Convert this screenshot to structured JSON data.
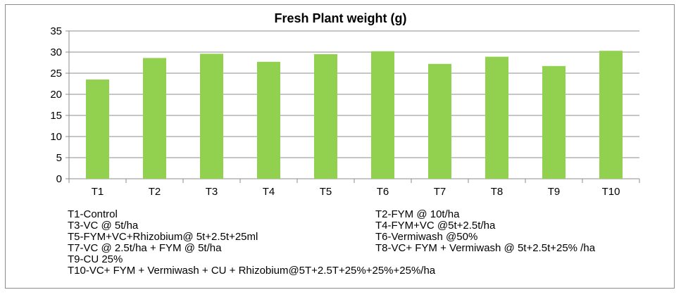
{
  "chart_data": {
    "type": "bar",
    "title": "Fresh Plant weight (g)",
    "categories": [
      "T1",
      "T2",
      "T3",
      "T4",
      "T5",
      "T6",
      "T7",
      "T8",
      "T9",
      "T10"
    ],
    "values": [
      23.5,
      28.6,
      29.6,
      27.7,
      29.5,
      30.2,
      27.2,
      28.9,
      26.7,
      30.3
    ],
    "ylim": [
      0,
      35
    ],
    "yticks": [
      "0",
      "5",
      "10",
      "15",
      "20",
      "25",
      "30",
      "35"
    ],
    "xlabel": "",
    "ylabel": "",
    "grid": true,
    "bar_color": "#92d050"
  },
  "legend": {
    "left": [
      "T1-Control",
      "T3-VC @ 5t/ha",
      "T5-FYM+VC+Rhizobium@ 5t+2.5t+25ml",
      "T7-VC @ 2.5t/ha + FYM @ 5t/ha",
      "T9-CU 25%",
      "T10-VC+ FYM + Vermiwash + CU + Rhizobium@5T+2.5T+25%+25%+25%/ha"
    ],
    "right": [
      "T2-FYM @ 10t/ha",
      "T4-FYM+VC @5t+2.5t/ha",
      "T6-Vermiwash @50%",
      "T8-VC+ FYM  + Vermiwash @ 5t+2.5t+25% /ha"
    ]
  }
}
